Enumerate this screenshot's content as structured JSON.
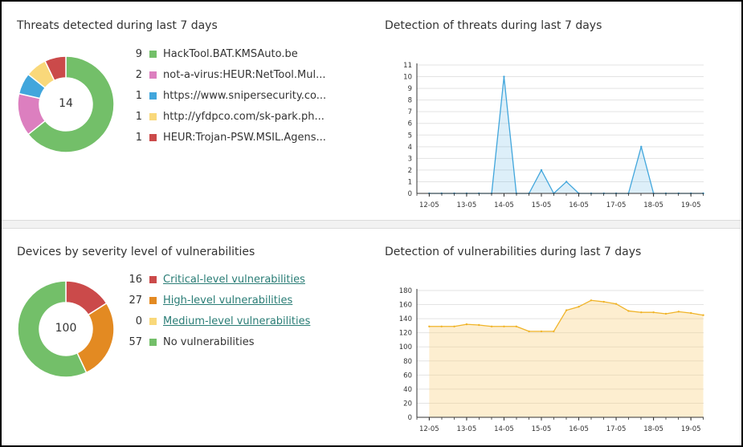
{
  "threats": {
    "title": "Threats detected during last 7 days",
    "total": "14",
    "items": [
      {
        "count": "9",
        "label": "HackTool.BAT.KMSAuto.be",
        "color": "#73bf69"
      },
      {
        "count": "2",
        "label": "not-a-virus:HEUR:NetTool.Mul...",
        "color": "#dc7fbf"
      },
      {
        "count": "1",
        "label": "https://www.snipersecurity.co...",
        "color": "#41a6dc"
      },
      {
        "count": "1",
        "label": "http://yfdpco.com/sk-park.ph...",
        "color": "#f9d87a"
      },
      {
        "count": "1",
        "label": "HEUR:Trojan-PSW.MSIL.Agens...",
        "color": "#cb4a4a"
      }
    ]
  },
  "vulnerabilities": {
    "title": "Devices by severity level of vulnerabilities",
    "total": "100",
    "items": [
      {
        "count": "16",
        "label": "Critical-level vulnerabilities",
        "color": "#cb4a4a",
        "link": true
      },
      {
        "count": "27",
        "label": "High-level vulnerabilities",
        "color": "#e38a22",
        "link": true
      },
      {
        "count": "0",
        "label": "Medium-level vulnerabilities",
        "color": "#f9d87a",
        "link": true
      },
      {
        "count": "57",
        "label": "No vulnerabilities",
        "color": "#73bf69",
        "link": false
      }
    ]
  },
  "threat_chart_title": "Detection of threats during last 7 days",
  "vuln_chart_title": "Detection of vulnerabilities during last 7 days",
  "chart_data": [
    {
      "type": "area",
      "title": "Detection of threats during last 7 days",
      "color": "#41a6dc",
      "ylim": [
        0,
        11
      ],
      "yticks": [
        0,
        1,
        2,
        3,
        4,
        5,
        6,
        7,
        8,
        9,
        10,
        11
      ],
      "xticks": [
        "12-05",
        "13-05",
        "14-05",
        "15-05",
        "16-05",
        "17-05",
        "18-05",
        "19-05"
      ],
      "x": [
        0,
        0.33,
        0.67,
        1,
        1.33,
        1.67,
        2,
        2.33,
        2.67,
        3,
        3.33,
        3.67,
        4,
        4.33,
        4.67,
        5,
        5.33,
        5.67,
        6,
        6.33,
        6.67,
        7,
        7.33
      ],
      "values": [
        0,
        0,
        0,
        0,
        0,
        0,
        10,
        0,
        0,
        2,
        0,
        1,
        0,
        0,
        0,
        0,
        0,
        4,
        0,
        0,
        0,
        0,
        0
      ]
    },
    {
      "type": "area",
      "title": "Detection of vulnerabilities during last 7 days",
      "color": "#f0b429",
      "ylim": [
        0,
        180
      ],
      "yticks": [
        0,
        20,
        40,
        60,
        80,
        100,
        120,
        140,
        160,
        180
      ],
      "xticks": [
        "12-05",
        "13-05",
        "14-05",
        "15-05",
        "16-05",
        "17-05",
        "18-05",
        "19-05"
      ],
      "x": [
        0,
        0.33,
        0.67,
        1,
        1.33,
        1.67,
        2,
        2.33,
        2.67,
        3,
        3.33,
        3.67,
        4,
        4.33,
        4.67,
        5,
        5.33,
        5.67,
        6,
        6.33,
        6.67,
        7,
        7.33
      ],
      "values": [
        129,
        129,
        129,
        132,
        131,
        129,
        129,
        129,
        122,
        122,
        122,
        152,
        157,
        166,
        164,
        161,
        151,
        149,
        149,
        147,
        150,
        148,
        145
      ]
    }
  ]
}
